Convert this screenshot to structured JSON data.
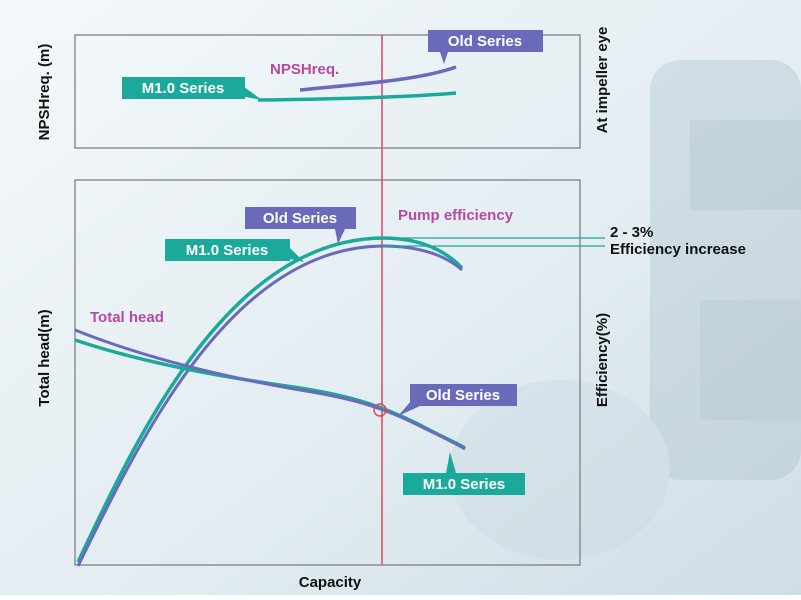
{
  "top_panel": {
    "y_axis_label": "NPSHreq. (m)",
    "right_label": "At impeller eye",
    "curve_label": "NPSHreq.",
    "old_series": "Old Series",
    "new_series": "M1.0 Series"
  },
  "bottom_panel": {
    "y_axis_label": "Total head(m)",
    "right_label": "Efficiency(%)",
    "efficiency_label": "Pump efficiency",
    "head_label": "Total head",
    "efficiency_old_series": "Old Series",
    "efficiency_new_series": "M1.0 Series",
    "head_old_series": "Old Series",
    "head_new_series": "M1.0 Series",
    "gain_value": "2 - 3%",
    "gain_text": "Efficiency increase"
  },
  "x_axis_label": "Capacity"
}
